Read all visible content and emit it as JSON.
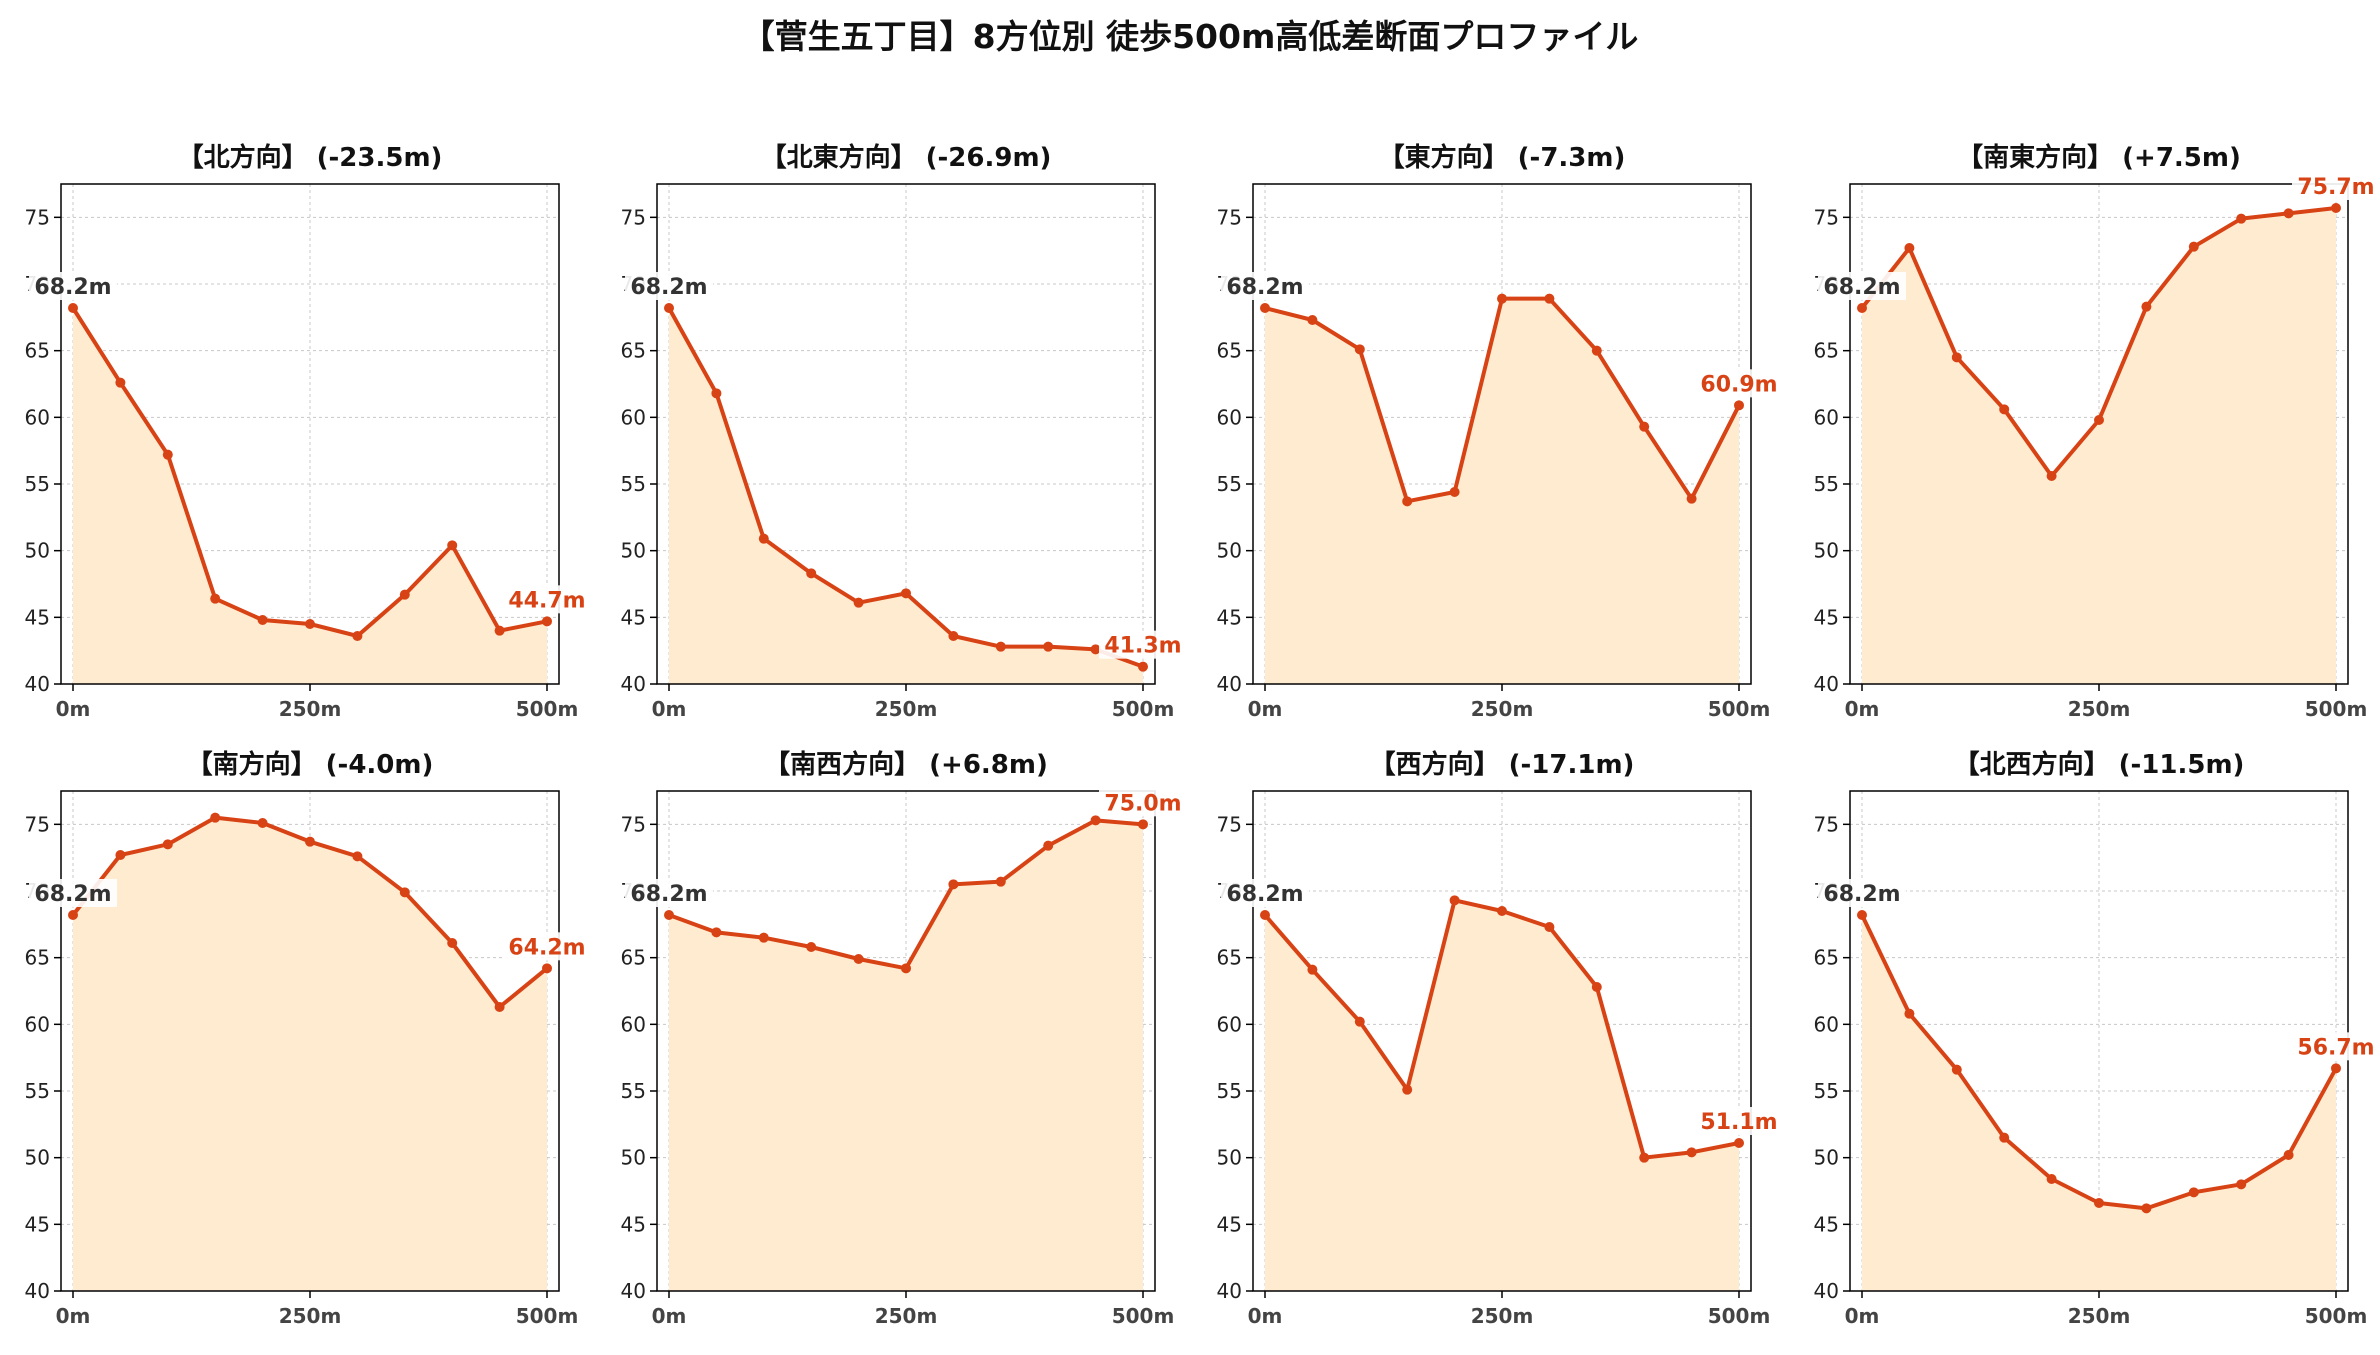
{
  "figure": {
    "title": "【菅生五丁目】8方位別 徒歩500m高低差断面プロファイル",
    "line_color": "#d84315",
    "fill_color": "#ffecd0",
    "start_label_color": "#333333",
    "grid_color": "#c8c8c8"
  },
  "chart_data": [
    {
      "type": "area",
      "title": "【北方向】 (-23.5m)",
      "x": [
        0,
        50,
        100,
        150,
        200,
        250,
        300,
        350,
        400,
        450,
        500
      ],
      "x_ticks": [
        "0m",
        "250m",
        "500m"
      ],
      "y": [
        68.2,
        62.6,
        57.2,
        46.4,
        44.8,
        44.5,
        43.6,
        46.7,
        50.4,
        44.0,
        44.7
      ],
      "ylim": [
        40,
        77.5
      ],
      "y_ticks": [
        "40",
        "45",
        "50",
        "55",
        "60",
        "65",
        "70",
        "75"
      ],
      "start_label": "68.2m",
      "end_label": "44.7m",
      "grid": true
    },
    {
      "type": "area",
      "title": "【北東方向】 (-26.9m)",
      "x": [
        0,
        50,
        100,
        150,
        200,
        250,
        300,
        350,
        400,
        450,
        500
      ],
      "x_ticks": [
        "0m",
        "250m",
        "500m"
      ],
      "y": [
        68.2,
        61.8,
        50.9,
        48.3,
        46.1,
        46.8,
        43.6,
        42.8,
        42.8,
        42.6,
        41.3
      ],
      "ylim": [
        40,
        77.5
      ],
      "y_ticks": [
        "40",
        "45",
        "50",
        "55",
        "60",
        "65",
        "70",
        "75"
      ],
      "start_label": "68.2m",
      "end_label": "41.3m",
      "grid": true
    },
    {
      "type": "area",
      "title": "【東方向】 (-7.3m)",
      "x": [
        0,
        50,
        100,
        150,
        200,
        250,
        300,
        350,
        400,
        450,
        500
      ],
      "x_ticks": [
        "0m",
        "250m",
        "500m"
      ],
      "y": [
        68.2,
        67.3,
        65.1,
        53.7,
        54.4,
        68.9,
        68.9,
        65.0,
        59.3,
        53.9,
        60.9
      ],
      "ylim": [
        40,
        77.5
      ],
      "y_ticks": [
        "40",
        "45",
        "50",
        "55",
        "60",
        "65",
        "70",
        "75"
      ],
      "start_label": "68.2m",
      "end_label": "60.9m",
      "grid": true
    },
    {
      "type": "area",
      "title": "【南東方向】 (+7.5m)",
      "x": [
        0,
        50,
        100,
        150,
        200,
        250,
        300,
        350,
        400,
        450,
        500
      ],
      "x_ticks": [
        "0m",
        "250m",
        "500m"
      ],
      "y": [
        68.2,
        72.7,
        64.5,
        60.6,
        55.6,
        59.8,
        68.3,
        72.8,
        74.9,
        75.3,
        75.7
      ],
      "ylim": [
        40,
        77.5
      ],
      "y_ticks": [
        "40",
        "45",
        "50",
        "55",
        "60",
        "65",
        "70",
        "75"
      ],
      "start_label": "68.2m",
      "end_label": "75.7m",
      "grid": true
    },
    {
      "type": "area",
      "title": "【南方向】 (-4.0m)",
      "x": [
        0,
        50,
        100,
        150,
        200,
        250,
        300,
        350,
        400,
        450,
        500
      ],
      "x_ticks": [
        "0m",
        "250m",
        "500m"
      ],
      "y": [
        68.2,
        72.7,
        73.5,
        75.5,
        75.1,
        73.7,
        72.6,
        69.9,
        66.1,
        61.3,
        64.2
      ],
      "ylim": [
        40,
        77.5
      ],
      "y_ticks": [
        "40",
        "45",
        "50",
        "55",
        "60",
        "65",
        "70",
        "75"
      ],
      "start_label": "68.2m",
      "end_label": "64.2m",
      "grid": true
    },
    {
      "type": "area",
      "title": "【南西方向】 (+6.8m)",
      "x": [
        0,
        50,
        100,
        150,
        200,
        250,
        300,
        350,
        400,
        450,
        500
      ],
      "x_ticks": [
        "0m",
        "250m",
        "500m"
      ],
      "y": [
        68.2,
        66.9,
        66.5,
        65.8,
        64.9,
        64.2,
        70.5,
        70.7,
        73.4,
        75.3,
        75.0
      ],
      "ylim": [
        40,
        77.5
      ],
      "y_ticks": [
        "40",
        "45",
        "50",
        "55",
        "60",
        "65",
        "70",
        "75"
      ],
      "start_label": "68.2m",
      "end_label": "75.0m",
      "grid": true
    },
    {
      "type": "area",
      "title": "【西方向】 (-17.1m)",
      "x": [
        0,
        50,
        100,
        150,
        200,
        250,
        300,
        350,
        400,
        450,
        500
      ],
      "x_ticks": [
        "0m",
        "250m",
        "500m"
      ],
      "y": [
        68.2,
        64.1,
        60.2,
        55.1,
        69.3,
        68.5,
        67.3,
        62.8,
        50.0,
        50.4,
        51.1
      ],
      "ylim": [
        40,
        77.5
      ],
      "y_ticks": [
        "40",
        "45",
        "50",
        "55",
        "60",
        "65",
        "70",
        "75"
      ],
      "start_label": "68.2m",
      "end_label": "51.1m",
      "grid": true
    },
    {
      "type": "area",
      "title": "【北西方向】 (-11.5m)",
      "x": [
        0,
        50,
        100,
        150,
        200,
        250,
        300,
        350,
        400,
        450,
        500
      ],
      "x_ticks": [
        "0m",
        "250m",
        "500m"
      ],
      "y": [
        68.2,
        60.8,
        56.6,
        51.5,
        48.4,
        46.6,
        46.2,
        47.4,
        48.0,
        50.2,
        56.7
      ],
      "ylim": [
        40,
        77.5
      ],
      "y_ticks": [
        "40",
        "45",
        "50",
        "55",
        "60",
        "65",
        "70",
        "75"
      ],
      "start_label": "68.2m",
      "end_label": "56.7m",
      "grid": true
    }
  ]
}
